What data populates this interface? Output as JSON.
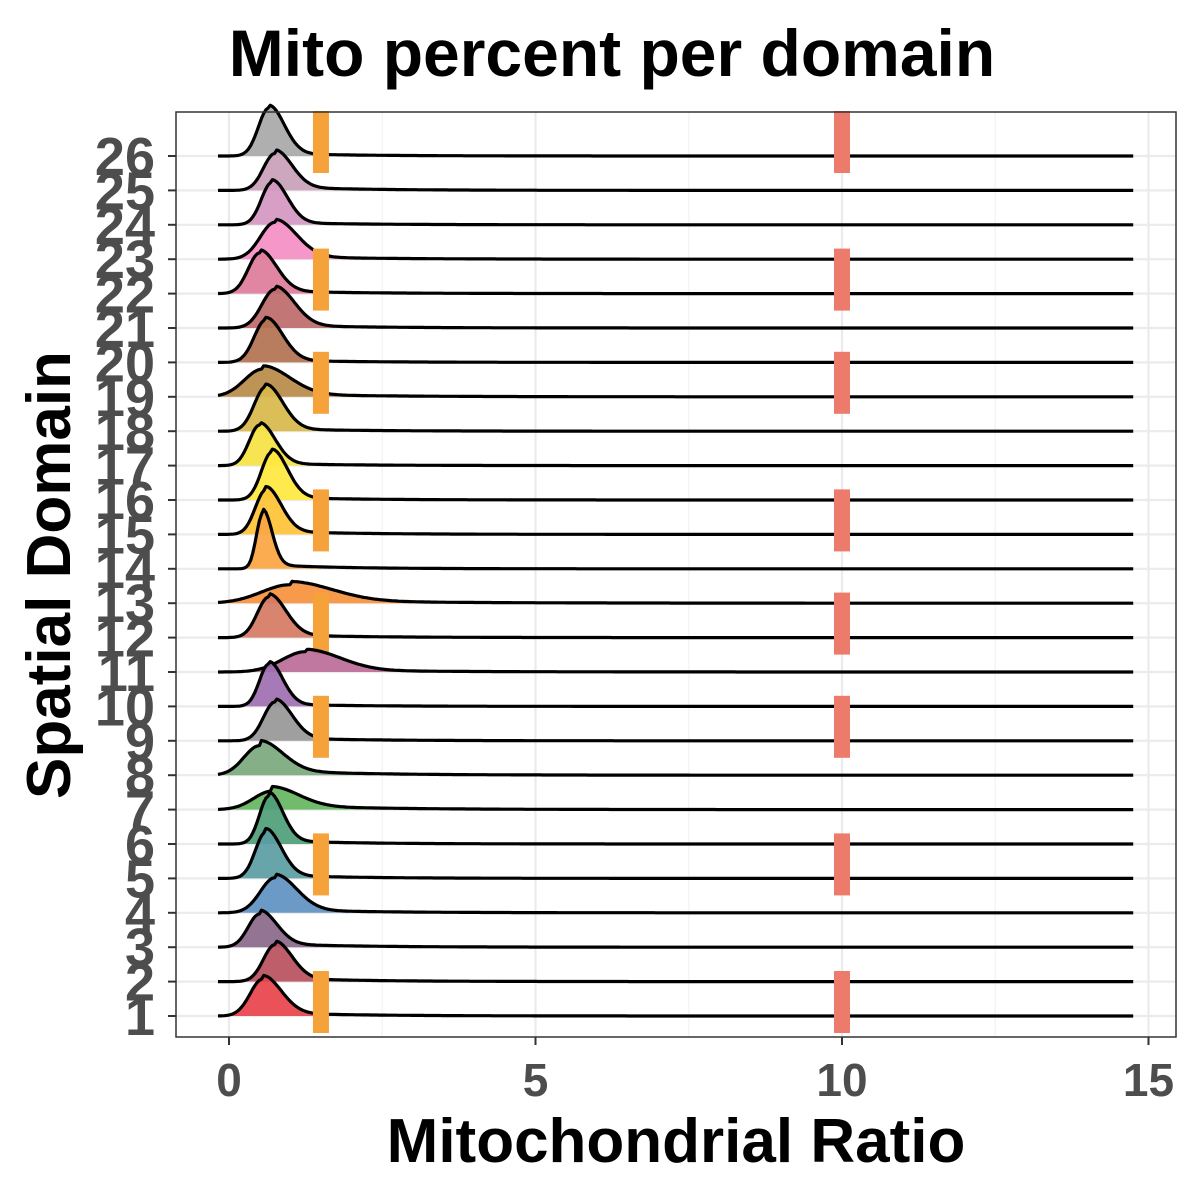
{
  "chart_data": {
    "type": "ridgeline",
    "title": "Mito percent per domain",
    "xlabel": "Mitochondrial Ratio",
    "ylabel": "Spatial Domain",
    "xlim": [
      -0.9,
      15.4
    ],
    "xticks": [
      0,
      5,
      10,
      15
    ],
    "grid": true,
    "legend": "none",
    "thresholds": [
      {
        "value": 1.5,
        "color": "#F5A23A"
      },
      {
        "value": 10,
        "color": "#EC7B6B"
      }
    ],
    "domains": [
      {
        "label": "1",
        "color": "#E8424A",
        "peak": 0.55,
        "width": 0.24,
        "height": 1.0,
        "tail": 0.1,
        "threshold_marks": true
      },
      {
        "label": "2",
        "color": "#B8505E",
        "peak": 0.75,
        "width": 0.22,
        "height": 1.0,
        "tail": 0.1,
        "threshold_marks": false
      },
      {
        "label": "3",
        "color": "#8A6889",
        "peak": 0.5,
        "width": 0.22,
        "height": 0.9,
        "tail": 0.12,
        "threshold_marks": false
      },
      {
        "label": "4",
        "color": "#5E91C2",
        "peak": 0.75,
        "width": 0.28,
        "height": 0.95,
        "tail": 0.1,
        "threshold_marks": false
      },
      {
        "label": "5",
        "color": "#5A9DA4",
        "peak": 0.6,
        "width": 0.2,
        "height": 1.25,
        "tail": 0.08,
        "threshold_marks": true
      },
      {
        "label": "6",
        "color": "#4E9E7A",
        "peak": 0.65,
        "width": 0.18,
        "height": 1.3,
        "tail": 0.08,
        "threshold_marks": false
      },
      {
        "label": "7",
        "color": "#64B560",
        "peak": 0.7,
        "width": 0.35,
        "height": 0.5,
        "tail": 0.25,
        "threshold_marks": false
      },
      {
        "label": "8",
        "color": "#7BA97D",
        "peak": 0.5,
        "width": 0.3,
        "height": 0.8,
        "tail": 0.18,
        "threshold_marks": false
      },
      {
        "label": "9",
        "color": "#979797",
        "peak": 0.75,
        "width": 0.22,
        "height": 1.05,
        "tail": 0.08,
        "threshold_marks": true
      },
      {
        "label": "10",
        "color": "#9E6FB0",
        "peak": 0.65,
        "width": 0.18,
        "height": 1.15,
        "tail": 0.06,
        "threshold_marks": false
      },
      {
        "label": "11",
        "color": "#BB6D98",
        "peak": 1.25,
        "width": 0.45,
        "height": 0.55,
        "tail": 0.12,
        "threshold_marks": false
      },
      {
        "label": "12",
        "color": "#D57A63",
        "peak": 0.65,
        "width": 0.22,
        "height": 1.1,
        "tail": 0.08,
        "threshold_marks": true
      },
      {
        "label": "13",
        "color": "#F7913D",
        "peak": 1.0,
        "width": 0.55,
        "height": 0.5,
        "tail": 0.18,
        "threshold_marks": false
      },
      {
        "label": "14",
        "color": "#FBA542",
        "peak": 0.55,
        "width": 0.12,
        "height": 1.5,
        "tail": 0.08,
        "threshold_marks": false
      },
      {
        "label": "15",
        "color": "#FFC236",
        "peak": 0.6,
        "width": 0.2,
        "height": 1.2,
        "tail": 0.08,
        "threshold_marks": true
      },
      {
        "label": "16",
        "color": "#FFE83E",
        "peak": 0.7,
        "width": 0.2,
        "height": 1.3,
        "tail": 0.06,
        "threshold_marks": false
      },
      {
        "label": "17",
        "color": "#F5E341",
        "peak": 0.5,
        "width": 0.2,
        "height": 1.1,
        "tail": 0.06,
        "threshold_marks": false
      },
      {
        "label": "18",
        "color": "#D9B84A",
        "peak": 0.6,
        "width": 0.22,
        "height": 1.2,
        "tail": 0.06,
        "threshold_marks": false
      },
      {
        "label": "19",
        "color": "#B88A48",
        "peak": 0.55,
        "width": 0.35,
        "height": 0.75,
        "tail": 0.12,
        "threshold_marks": true
      },
      {
        "label": "20",
        "color": "#B27250",
        "peak": 0.6,
        "width": 0.22,
        "height": 1.15,
        "tail": 0.06,
        "threshold_marks": false
      },
      {
        "label": "21",
        "color": "#BD6A6A",
        "peak": 0.75,
        "width": 0.25,
        "height": 1.05,
        "tail": 0.08,
        "threshold_marks": false
      },
      {
        "label": "22",
        "color": "#DD7C9B",
        "peak": 0.5,
        "width": 0.22,
        "height": 1.1,
        "tail": 0.08,
        "threshold_marks": true
      },
      {
        "label": "23",
        "color": "#F58EC4",
        "peak": 0.75,
        "width": 0.28,
        "height": 1.0,
        "tail": 0.08,
        "threshold_marks": false
      },
      {
        "label": "24",
        "color": "#D497C0",
        "peak": 0.7,
        "width": 0.2,
        "height": 1.15,
        "tail": 0.06,
        "threshold_marks": false
      },
      {
        "label": "25",
        "color": "#C8A0B8",
        "peak": 0.75,
        "width": 0.22,
        "height": 1.0,
        "tail": 0.1,
        "threshold_marks": false
      },
      {
        "label": "26",
        "color": "#A8A8A8",
        "peak": 0.65,
        "width": 0.2,
        "height": 1.3,
        "tail": 0.06,
        "threshold_marks": true
      }
    ]
  }
}
